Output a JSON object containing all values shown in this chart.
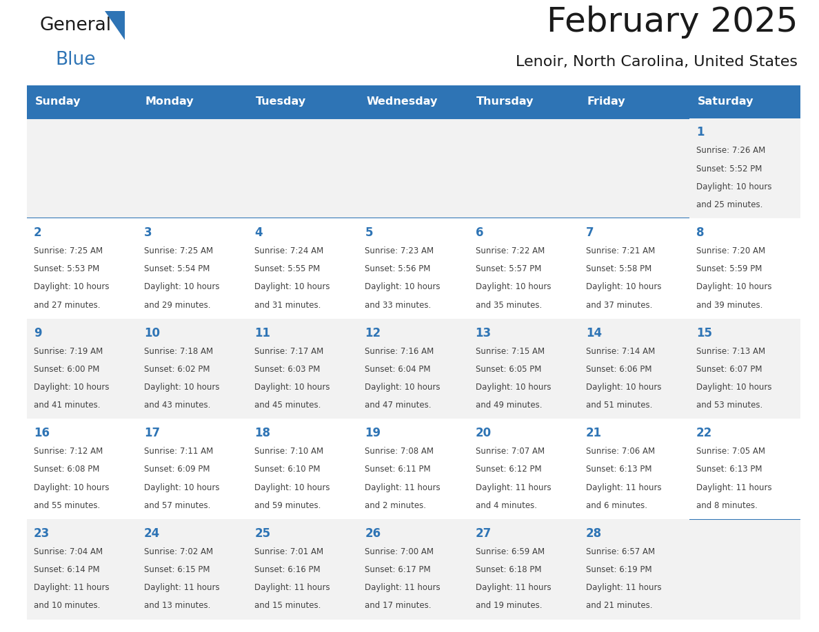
{
  "title": "February 2025",
  "subtitle": "Lenoir, North Carolina, United States",
  "days_of_week": [
    "Sunday",
    "Monday",
    "Tuesday",
    "Wednesday",
    "Thursday",
    "Friday",
    "Saturday"
  ],
  "header_bg": "#2E74B5",
  "header_text": "#FFFFFF",
  "cell_bg_odd": "#F2F2F2",
  "cell_bg_even": "#FFFFFF",
  "border_color": "#2E74B5",
  "day_number_color": "#2E74B5",
  "text_color": "#404040",
  "title_color": "#1a1a1a",
  "logo_general_color": "#1a1a1a",
  "logo_blue_color": "#2E74B5",
  "num_cols": 7,
  "num_rows": 5,
  "calendar_data": [
    {
      "day": 1,
      "col": 6,
      "row": 0,
      "sunrise": "7:26 AM",
      "sunset": "5:52 PM",
      "daylight": "10 hours and 25 minutes."
    },
    {
      "day": 2,
      "col": 0,
      "row": 1,
      "sunrise": "7:25 AM",
      "sunset": "5:53 PM",
      "daylight": "10 hours and 27 minutes."
    },
    {
      "day": 3,
      "col": 1,
      "row": 1,
      "sunrise": "7:25 AM",
      "sunset": "5:54 PM",
      "daylight": "10 hours and 29 minutes."
    },
    {
      "day": 4,
      "col": 2,
      "row": 1,
      "sunrise": "7:24 AM",
      "sunset": "5:55 PM",
      "daylight": "10 hours and 31 minutes."
    },
    {
      "day": 5,
      "col": 3,
      "row": 1,
      "sunrise": "7:23 AM",
      "sunset": "5:56 PM",
      "daylight": "10 hours and 33 minutes."
    },
    {
      "day": 6,
      "col": 4,
      "row": 1,
      "sunrise": "7:22 AM",
      "sunset": "5:57 PM",
      "daylight": "10 hours and 35 minutes."
    },
    {
      "day": 7,
      "col": 5,
      "row": 1,
      "sunrise": "7:21 AM",
      "sunset": "5:58 PM",
      "daylight": "10 hours and 37 minutes."
    },
    {
      "day": 8,
      "col": 6,
      "row": 1,
      "sunrise": "7:20 AM",
      "sunset": "5:59 PM",
      "daylight": "10 hours and 39 minutes."
    },
    {
      "day": 9,
      "col": 0,
      "row": 2,
      "sunrise": "7:19 AM",
      "sunset": "6:00 PM",
      "daylight": "10 hours and 41 minutes."
    },
    {
      "day": 10,
      "col": 1,
      "row": 2,
      "sunrise": "7:18 AM",
      "sunset": "6:02 PM",
      "daylight": "10 hours and 43 minutes."
    },
    {
      "day": 11,
      "col": 2,
      "row": 2,
      "sunrise": "7:17 AM",
      "sunset": "6:03 PM",
      "daylight": "10 hours and 45 minutes."
    },
    {
      "day": 12,
      "col": 3,
      "row": 2,
      "sunrise": "7:16 AM",
      "sunset": "6:04 PM",
      "daylight": "10 hours and 47 minutes."
    },
    {
      "day": 13,
      "col": 4,
      "row": 2,
      "sunrise": "7:15 AM",
      "sunset": "6:05 PM",
      "daylight": "10 hours and 49 minutes."
    },
    {
      "day": 14,
      "col": 5,
      "row": 2,
      "sunrise": "7:14 AM",
      "sunset": "6:06 PM",
      "daylight": "10 hours and 51 minutes."
    },
    {
      "day": 15,
      "col": 6,
      "row": 2,
      "sunrise": "7:13 AM",
      "sunset": "6:07 PM",
      "daylight": "10 hours and 53 minutes."
    },
    {
      "day": 16,
      "col": 0,
      "row": 3,
      "sunrise": "7:12 AM",
      "sunset": "6:08 PM",
      "daylight": "10 hours and 55 minutes."
    },
    {
      "day": 17,
      "col": 1,
      "row": 3,
      "sunrise": "7:11 AM",
      "sunset": "6:09 PM",
      "daylight": "10 hours and 57 minutes."
    },
    {
      "day": 18,
      "col": 2,
      "row": 3,
      "sunrise": "7:10 AM",
      "sunset": "6:10 PM",
      "daylight": "10 hours and 59 minutes."
    },
    {
      "day": 19,
      "col": 3,
      "row": 3,
      "sunrise": "7:08 AM",
      "sunset": "6:11 PM",
      "daylight": "11 hours and 2 minutes."
    },
    {
      "day": 20,
      "col": 4,
      "row": 3,
      "sunrise": "7:07 AM",
      "sunset": "6:12 PM",
      "daylight": "11 hours and 4 minutes."
    },
    {
      "day": 21,
      "col": 5,
      "row": 3,
      "sunrise": "7:06 AM",
      "sunset": "6:13 PM",
      "daylight": "11 hours and 6 minutes."
    },
    {
      "day": 22,
      "col": 6,
      "row": 3,
      "sunrise": "7:05 AM",
      "sunset": "6:13 PM",
      "daylight": "11 hours and 8 minutes."
    },
    {
      "day": 23,
      "col": 0,
      "row": 4,
      "sunrise": "7:04 AM",
      "sunset": "6:14 PM",
      "daylight": "11 hours and 10 minutes."
    },
    {
      "day": 24,
      "col": 1,
      "row": 4,
      "sunrise": "7:02 AM",
      "sunset": "6:15 PM",
      "daylight": "11 hours and 13 minutes."
    },
    {
      "day": 25,
      "col": 2,
      "row": 4,
      "sunrise": "7:01 AM",
      "sunset": "6:16 PM",
      "daylight": "11 hours and 15 minutes."
    },
    {
      "day": 26,
      "col": 3,
      "row": 4,
      "sunrise": "7:00 AM",
      "sunset": "6:17 PM",
      "daylight": "11 hours and 17 minutes."
    },
    {
      "day": 27,
      "col": 4,
      "row": 4,
      "sunrise": "6:59 AM",
      "sunset": "6:18 PM",
      "daylight": "11 hours and 19 minutes."
    },
    {
      "day": 28,
      "col": 5,
      "row": 4,
      "sunrise": "6:57 AM",
      "sunset": "6:19 PM",
      "daylight": "11 hours and 21 minutes."
    }
  ]
}
